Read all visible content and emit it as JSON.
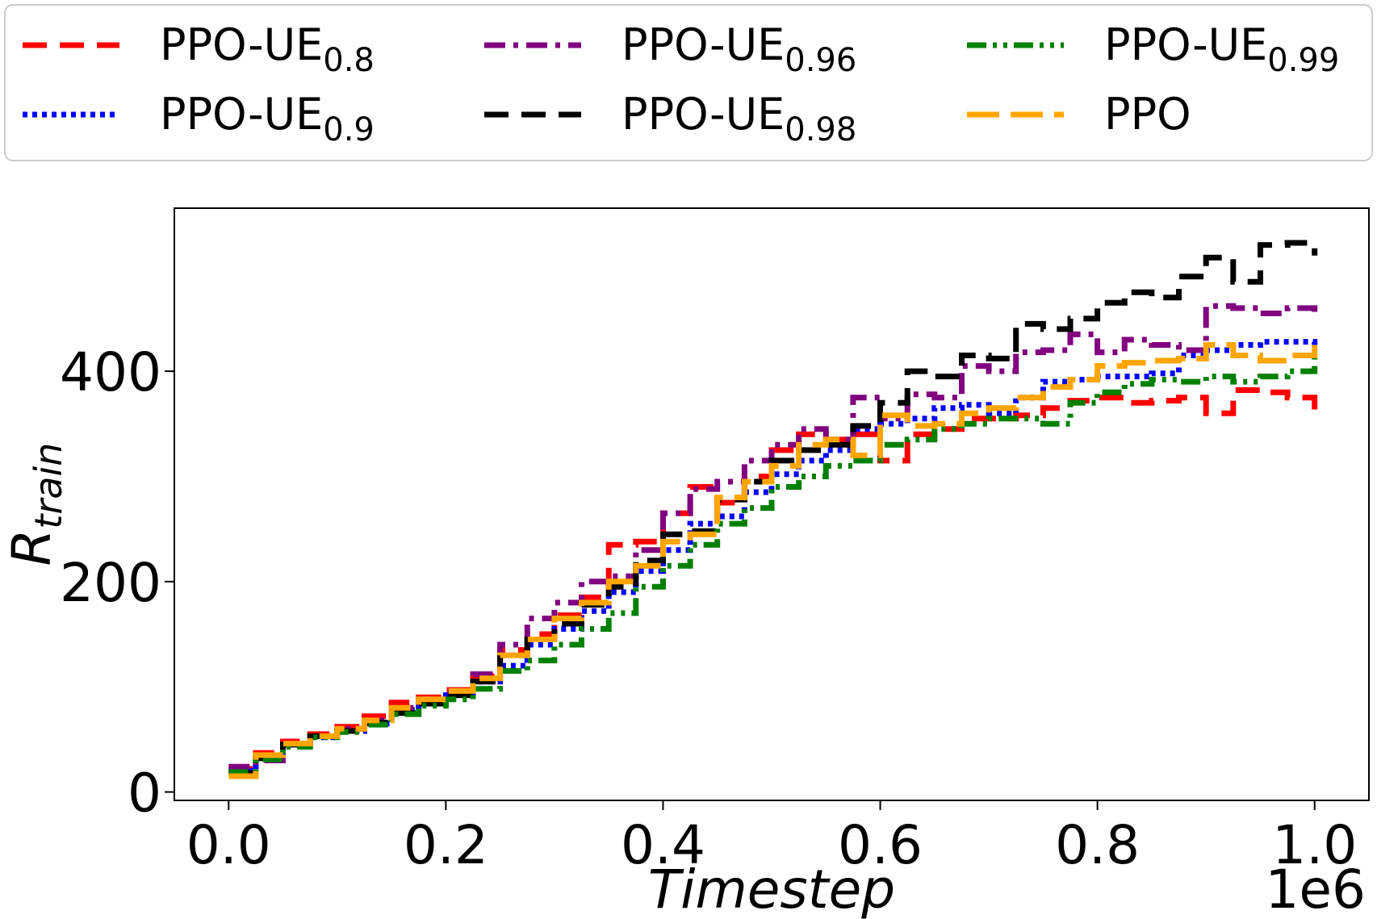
{
  "chart_data": {
    "type": "line",
    "xlabel": "Timestep",
    "ylabel": "R",
    "ylabel_sub": "train",
    "x_offset_label": "1e6",
    "xlim": [
      -0.05,
      1.05
    ],
    "ylim": [
      -8,
      555
    ],
    "x_ticks": [
      "0.0",
      "0.2",
      "0.4",
      "0.6",
      "0.8",
      "1.0"
    ],
    "x_tick_values": [
      0.0,
      0.2,
      0.4,
      0.6,
      0.8,
      1.0
    ],
    "y_ticks": [
      "0",
      "200",
      "400"
    ],
    "y_tick_values": [
      0,
      200,
      400
    ],
    "legend_position": "top, outside",
    "x": [
      0.0,
      0.025,
      0.05,
      0.075,
      0.1,
      0.125,
      0.15,
      0.175,
      0.2,
      0.225,
      0.25,
      0.275,
      0.3,
      0.325,
      0.35,
      0.375,
      0.4,
      0.425,
      0.45,
      0.475,
      0.5,
      0.525,
      0.55,
      0.575,
      0.6,
      0.625,
      0.65,
      0.675,
      0.7,
      0.725,
      0.75,
      0.775,
      0.8,
      0.825,
      0.85,
      0.875,
      0.9,
      0.925,
      0.95,
      0.975,
      1.0
    ],
    "series": [
      {
        "name": "PPO-UE",
        "name_sub": "0.8",
        "color": "#ff0000",
        "dash": "dashed",
        "values": [
          22,
          37,
          48,
          55,
          62,
          72,
          85,
          90,
          97,
          110,
          135,
          150,
          168,
          185,
          235,
          238,
          265,
          290,
          275,
          300,
          325,
          340,
          335,
          340,
          315,
          340,
          345,
          355,
          355,
          358,
          365,
          372,
          375,
          370,
          372,
          375,
          360,
          382,
          380,
          375,
          358
        ]
      },
      {
        "name": "PPO-UE",
        "name_sub": "0.9",
        "color": "#0000ff",
        "dash": "dotted",
        "values": [
          20,
          33,
          45,
          52,
          58,
          65,
          78,
          85,
          92,
          105,
          120,
          140,
          155,
          172,
          190,
          210,
          230,
          255,
          262,
          285,
          302,
          315,
          325,
          345,
          350,
          355,
          365,
          368,
          360,
          375,
          390,
          392,
          395,
          395,
          398,
          415,
          420,
          425,
          428,
          428,
          425
        ]
      },
      {
        "name": "PPO-UE",
        "name_sub": "0.96",
        "color": "#800080",
        "dash": "dashdot",
        "values": [
          24,
          30,
          45,
          53,
          60,
          68,
          80,
          88,
          95,
          112,
          140,
          165,
          180,
          200,
          205,
          230,
          265,
          288,
          295,
          315,
          330,
          345,
          335,
          375,
          355,
          378,
          375,
          405,
          400,
          418,
          420,
          435,
          418,
          430,
          425,
          420,
          462,
          460,
          455,
          460,
          455
        ]
      },
      {
        "name": "PPO-UE",
        "name_sub": "0.98",
        "color": "#000000",
        "dash": "dashed",
        "values": [
          18,
          32,
          45,
          53,
          58,
          66,
          75,
          84,
          92,
          105,
          130,
          145,
          160,
          178,
          195,
          220,
          245,
          248,
          278,
          295,
          315,
          325,
          330,
          348,
          370,
          400,
          395,
          415,
          412,
          445,
          440,
          450,
          465,
          475,
          470,
          490,
          508,
          485,
          520,
          522,
          510
        ]
      },
      {
        "name": "PPO-UE",
        "name_sub": "0.99",
        "color": "#008000",
        "dash": "dashdotdot",
        "values": [
          19,
          31,
          43,
          52,
          57,
          64,
          74,
          82,
          88,
          98,
          115,
          125,
          140,
          155,
          170,
          195,
          215,
          235,
          255,
          270,
          290,
          300,
          310,
          315,
          330,
          335,
          345,
          350,
          355,
          355,
          350,
          370,
          380,
          388,
          392,
          390,
          395,
          390,
          395,
          400,
          418
        ]
      },
      {
        "name": "PPO",
        "name_sub": "",
        "color": "#ffa500",
        "dash": "longdash",
        "values": [
          15,
          35,
          46,
          53,
          60,
          68,
          80,
          88,
          96,
          108,
          130,
          145,
          165,
          180,
          200,
          215,
          238,
          245,
          280,
          295,
          310,
          330,
          335,
          320,
          358,
          348,
          350,
          360,
          365,
          375,
          385,
          392,
          405,
          408,
          410,
          412,
          425,
          415,
          410,
          415,
          425
        ]
      }
    ]
  }
}
